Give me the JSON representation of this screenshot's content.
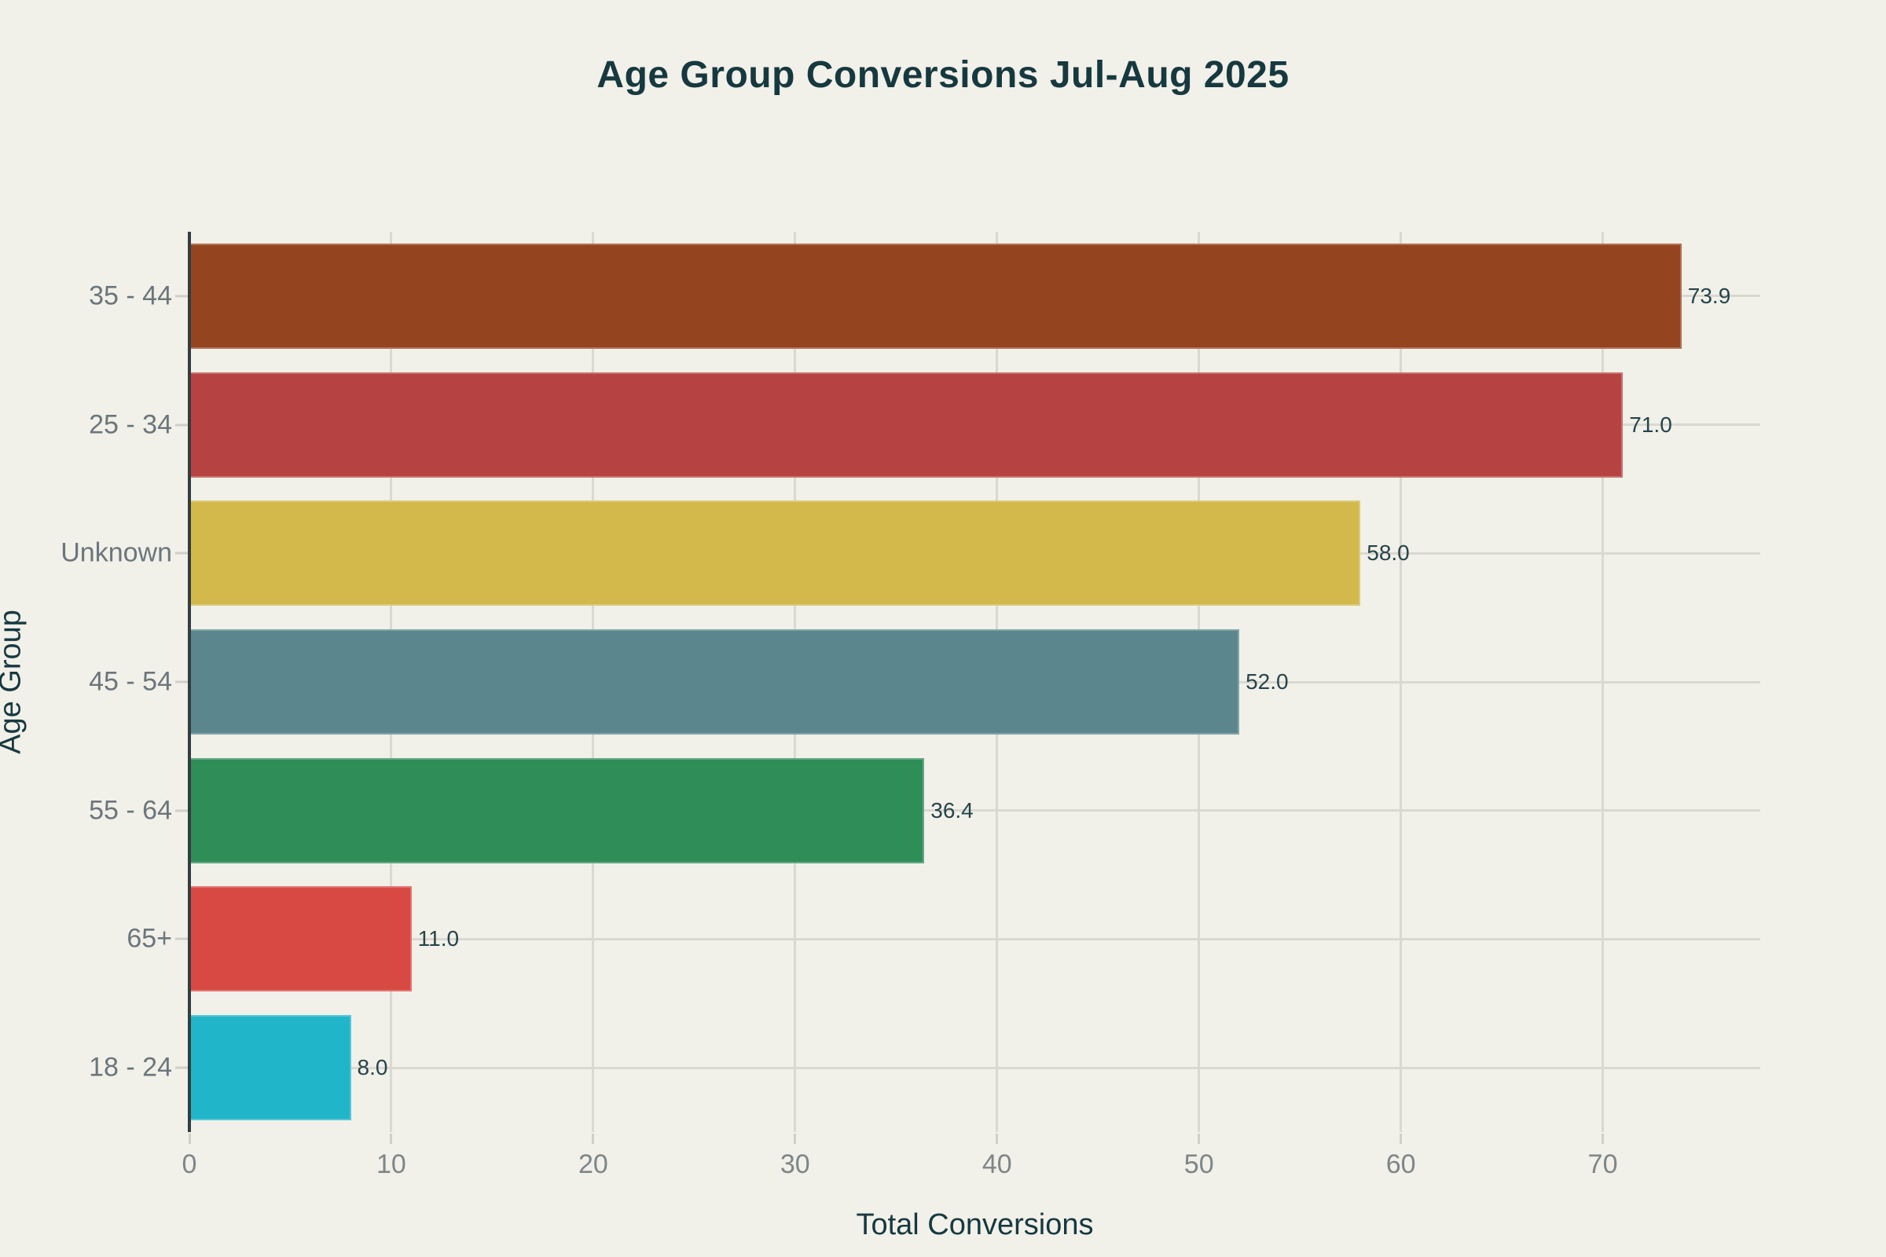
{
  "title": "Age Group Conversions Jul-Aug 2025",
  "chart_data": {
    "type": "bar",
    "orientation": "horizontal",
    "title": "Age Group Conversions Jul-Aug 2025",
    "xlabel": "Total Conversions",
    "ylabel": "Age Group",
    "categories": [
      "35 - 44",
      "25 - 34",
      "Unknown",
      "45 - 54",
      "55 - 64",
      "65+",
      "18 - 24"
    ],
    "values": [
      73.9,
      71.0,
      58.0,
      52.0,
      36.4,
      11.0,
      8.0
    ],
    "value_labels": [
      "73.9",
      "71.0",
      "58.0",
      "52.0",
      "36.4",
      "11.0",
      "8.0"
    ],
    "bar_colors": [
      "#954420",
      "#b64341",
      "#d3b94b",
      "#5b868e",
      "#2f8d58",
      "#d94944",
      "#20b5c9"
    ],
    "x_ticks": [
      0,
      10,
      20,
      30,
      40,
      50,
      60,
      70
    ],
    "xlim": [
      0,
      77.8
    ],
    "grid": true,
    "legend_position": "none",
    "style": {
      "background_color": "#f1f0e9",
      "title_color": "#16393f",
      "axis_title_color": "#16393f",
      "tick_label_color": "#7e8688",
      "category_label_color": "#6b767b",
      "value_label_color": "#25454a",
      "gridline_color": "#d9d8d1",
      "axis_line_color": "#333e41"
    }
  }
}
